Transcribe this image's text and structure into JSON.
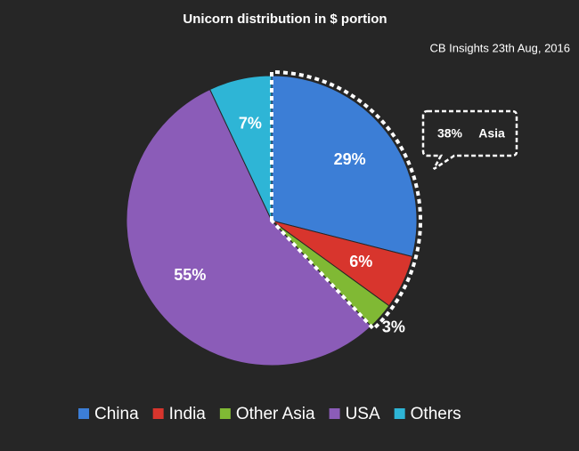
{
  "chart_data": {
    "type": "pie",
    "title": "Unicorn distribution in $ portion",
    "subtitle": "CB Insights 23th Aug, 2016",
    "categories": [
      "China",
      "India",
      "Other Asia",
      "USA",
      "Others"
    ],
    "values": [
      29,
      6,
      3,
      55,
      7
    ],
    "value_labels": [
      "29%",
      "6%",
      "3%",
      "55%",
      "7%"
    ],
    "colors": [
      "#3c7ed6",
      "#d8352d",
      "#80b934",
      "#8b5cb8",
      "#2eb5d6"
    ],
    "annotation": {
      "value": 38,
      "value_label": "38%",
      "text": "Asia"
    },
    "legend": "bottom"
  }
}
